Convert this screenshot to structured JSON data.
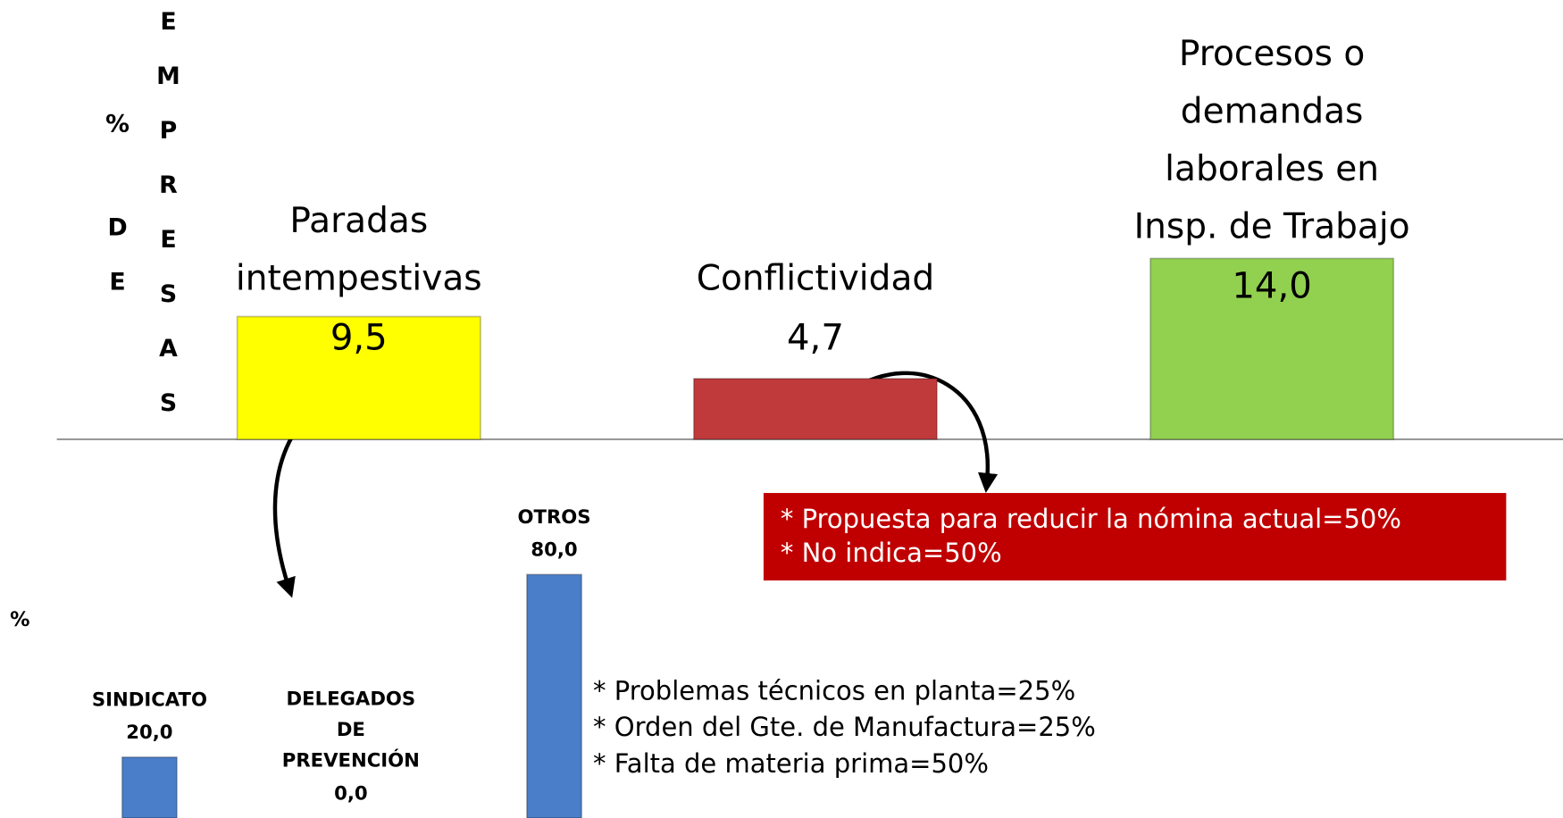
{
  "chart_data": [
    {
      "type": "bar",
      "ylabel": [
        "%",
        "DE",
        "EMPRESAS"
      ],
      "categories": [
        [
          "Paradas",
          "intempestivas"
        ],
        [
          "Conflictividad"
        ],
        [
          "Procesos o",
          "demandas",
          "laborales en",
          "Insp. de Trabajo"
        ]
      ],
      "values": [
        9.5,
        4.7,
        14.0
      ],
      "value_labels": [
        "9,5",
        "4,7",
        "14,0"
      ],
      "colors": [
        "#ffff00",
        "#c0393b",
        "#92d050"
      ],
      "ylim": [
        0,
        14
      ],
      "annotations": [
        [
          "* Propuesta para reducir la nómina actual=50%",
          "* No indica=50%"
        ],
        [
          "* Problemas técnicos en planta=25%",
          "* Orden del Gte. de Manufactura=25%",
          "* Falta de materia prima=50%"
        ]
      ]
    },
    {
      "type": "bar",
      "ylabel": "%",
      "categories": [
        [
          "SINDICATO"
        ],
        [
          "DELEGADOS",
          "DE",
          "PREVENCIÓN"
        ],
        [
          "OTROS"
        ]
      ],
      "values": [
        20.0,
        0.0,
        80.0
      ],
      "value_labels": [
        "20,0",
        "0,0",
        "80,0"
      ],
      "color": "#4a7ec8",
      "ylim": [
        0,
        80
      ]
    }
  ]
}
